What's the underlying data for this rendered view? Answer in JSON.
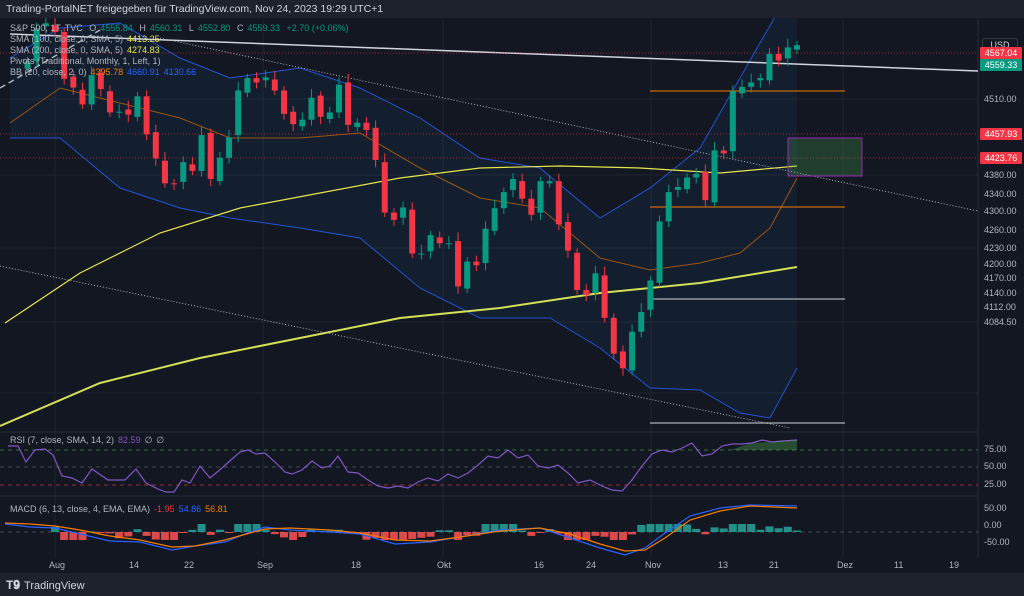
{
  "header": {
    "title": "Trading-PortalNET freigegeben für TradingView.com, Nov 24, 2023 19:29 UTC+1"
  },
  "legend": {
    "symbol": "S&P 500, 1T, TVC",
    "o_label": "O",
    "o": "4555.84",
    "h_label": "H",
    "h": "4560.31",
    "l_label": "L",
    "l": "4552.80",
    "c_label": "C",
    "c": "4559.33",
    "change": "+2.70 (+0.06%)",
    "sma100_label": "SMA (100, close, 0, SMA, 5)",
    "sma100": "4413.25",
    "sma200_label": "SMA (200, close, 0, SMA, 5)",
    "sma200": "4274.83",
    "pivots_label": "Pivots (Traditional, Monthly, 1, Left, 1)",
    "bb_label": "BB (20, close, 2, 0)",
    "bb_basis": "4395.78",
    "bb_upper": "4660.91",
    "bb_lower": "4130.66",
    "rsi_label": "RSI (7, close, SMA, 14, 2)",
    "rsi": "82.59",
    "rsi_extra1": "∅",
    "rsi_extra2": "∅",
    "macd_label": "MACD (6, 13, close, 4, EMA, EMA)",
    "macd_hist": "-1.95",
    "macd": "54.86",
    "macd_signal": "56.81"
  },
  "currency": "USD",
  "price_tags": [
    {
      "value": "4567.04",
      "color": "#f23645"
    },
    {
      "value": "4559.33",
      "color": "#089981"
    },
    {
      "value": "4457.93",
      "color": "#f23645"
    },
    {
      "value": "4423.76",
      "color": "#f23645"
    }
  ],
  "price_axis": [
    "4510.00",
    "4380.00",
    "4340.00",
    "4300.00",
    "4260.00",
    "4230.00",
    "4200.00",
    "4170.00",
    "4140.00",
    "4112.00",
    "4084.50"
  ],
  "rsi_axis": [
    "75.00",
    "50.00",
    "25.00"
  ],
  "macd_axis": [
    "50.00",
    "0.00",
    "-50.00"
  ],
  "time_axis": [
    "Aug",
    "14",
    "22",
    "Sep",
    "18",
    "Okt",
    "16",
    "24",
    "Nov",
    "13",
    "21",
    "Dez",
    "11",
    "19"
  ],
  "brand": "TradingView",
  "colors": {
    "up": "#089981",
    "down": "#f23645",
    "sma100": "#e6e64c",
    "sma200": "#d4e157",
    "bb": "#2962ff",
    "rsi": "#7e57c2"
  },
  "chart_data": {
    "type": "candlestick",
    "title": "S&P 500, 1T, TVC",
    "x_start": "Jul 27 2023",
    "x_end": "Nov 24 2023",
    "ylim": [
      4060,
      4600
    ],
    "closes": [
      4537,
      4582,
      4589,
      4577,
      4513,
      4501,
      4478,
      4518,
      4499,
      4467,
      4468,
      4464,
      4489,
      4437,
      4404,
      4370,
      4369,
      4399,
      4387,
      4436,
      4376,
      4405,
      4433,
      4497,
      4514,
      4508,
      4515,
      4497,
      4465,
      4451,
      4457,
      4487,
      4461,
      4467,
      4505,
      4450,
      4453,
      4443,
      4402,
      4330,
      4320,
      4337,
      4274,
      4274,
      4299,
      4288,
      4288,
      4229,
      4263,
      4258,
      4308,
      4336,
      4358,
      4376,
      4349,
      4327,
      4373,
      4373,
      4314,
      4278,
      4224,
      4217,
      4247,
      4186,
      4137,
      4117,
      4167,
      4194,
      4237,
      4318,
      4358,
      4365,
      4378,
      4383,
      4347,
      4415,
      4411,
      4496,
      4502,
      4508,
      4514,
      4547,
      4538,
      4556,
      4559
    ],
    "levels": [
      4567.04,
      4457.93,
      4423.76
    ]
  }
}
